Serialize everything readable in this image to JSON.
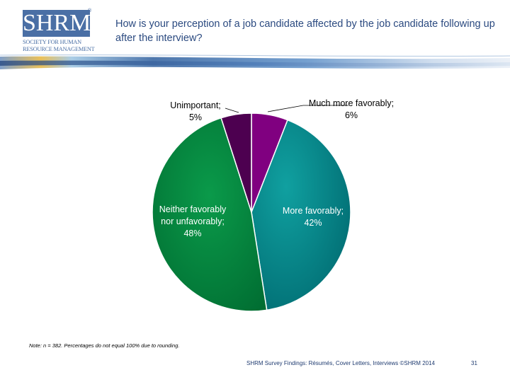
{
  "logo": {
    "mark": "SHRM",
    "registered": "®",
    "line1": "SOCIETY FOR HUMAN",
    "line2": "RESOURCE MANAGEMENT",
    "color": "#4a6fa5"
  },
  "title": "How is your perception of a job candidate affected by the job candidate following up after the interview?",
  "chart_data": {
    "type": "pie",
    "slices": [
      {
        "label": "Much more favorably",
        "value": 6,
        "color": "#800080"
      },
      {
        "label": "More favorably",
        "value": 42,
        "color": "#008080"
      },
      {
        "label": "Neither favorably nor unfavorably",
        "value": 48,
        "color": "#008040"
      },
      {
        "label": "Unimportant",
        "value": 5,
        "color": "#4d0050"
      }
    ],
    "data_labels": [
      {
        "name": "Much more favorably;",
        "value": "6%"
      },
      {
        "name": "More favorably;",
        "value": "42%"
      },
      {
        "name": "Neither favorably nor unfavorably;",
        "value": "48%"
      },
      {
        "name": "Unimportant;",
        "value": "5%"
      }
    ]
  },
  "note": "Note: n = 382. Percentages do not equal 100% due to rounding.",
  "footer": "SHRM Survey Findings: Résumés, Cover Letters, Interviews ©SHRM 2014",
  "page_number": "31"
}
